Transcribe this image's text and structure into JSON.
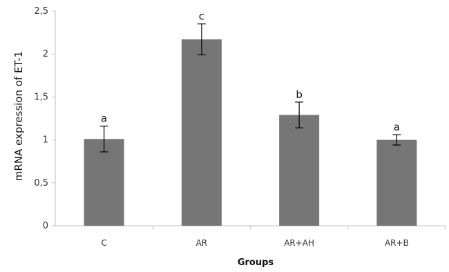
{
  "chart_data": {
    "type": "bar",
    "categories": [
      "C",
      "AR",
      "AR+AH",
      "AR+B"
    ],
    "values": [
      1.01,
      2.17,
      1.29,
      1.0
    ],
    "errors": [
      0.15,
      0.18,
      0.15,
      0.06
    ],
    "significance_labels": [
      "a",
      "c",
      "b",
      "a"
    ],
    "xlabel": "Groups",
    "ylabel": "mRNA expression of ET-1",
    "ylim": [
      0,
      2.5
    ],
    "yticks": [
      0,
      0.5,
      1,
      1.5,
      2,
      2.5
    ],
    "ytick_labels": [
      "0",
      "0,5",
      "1",
      "1,5",
      "2",
      "2,5"
    ],
    "grid": false,
    "legend": "none",
    "bar_color": "#767676",
    "axis_color": "#bfbfbf"
  }
}
